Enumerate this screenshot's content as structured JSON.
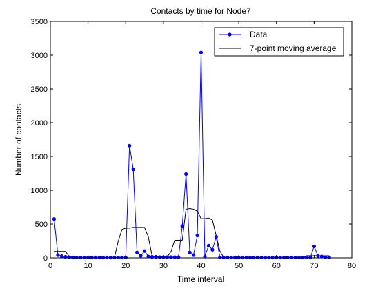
{
  "chart_data": {
    "type": "line",
    "title": "Contacts by time for Node7",
    "xlabel": "Time interval",
    "ylabel": "Number of contacts",
    "xlim": [
      0,
      80
    ],
    "ylim": [
      0,
      3500
    ],
    "xticks": [
      0,
      10,
      20,
      30,
      40,
      50,
      60,
      70,
      80
    ],
    "yticks": [
      0,
      500,
      1000,
      1500,
      2000,
      2500,
      3000,
      3500
    ],
    "grid": false,
    "legend_position": "top-right",
    "series": [
      {
        "name": "Data",
        "color": "#0000ff",
        "marker": "dot",
        "x": [
          1,
          2,
          3,
          4,
          5,
          6,
          7,
          8,
          9,
          10,
          11,
          12,
          13,
          14,
          15,
          16,
          17,
          18,
          19,
          20,
          21,
          22,
          23,
          24,
          25,
          26,
          27,
          28,
          29,
          30,
          31,
          32,
          33,
          34,
          35,
          36,
          37,
          38,
          39,
          40,
          41,
          42,
          43,
          44,
          45,
          46,
          47,
          48,
          49,
          50,
          51,
          52,
          53,
          54,
          55,
          56,
          57,
          58,
          59,
          60,
          61,
          62,
          63,
          64,
          65,
          66,
          67,
          68,
          69,
          70,
          71,
          72,
          73,
          74
        ],
        "y": [
          575,
          40,
          25,
          15,
          8,
          5,
          5,
          5,
          5,
          5,
          5,
          5,
          5,
          5,
          5,
          5,
          5,
          5,
          5,
          5,
          1660,
          1310,
          80,
          30,
          100,
          20,
          15,
          15,
          10,
          10,
          10,
          10,
          10,
          10,
          470,
          1240,
          80,
          40,
          330,
          3040,
          20,
          180,
          120,
          310,
          5,
          5,
          5,
          5,
          5,
          5,
          5,
          5,
          5,
          5,
          5,
          5,
          5,
          5,
          5,
          5,
          5,
          5,
          5,
          5,
          5,
          5,
          5,
          5,
          5,
          170,
          30,
          20,
          10,
          5
        ]
      },
      {
        "name": "7-point moving average",
        "color": "#000000",
        "marker": "none",
        "x": [
          1,
          2,
          3,
          4,
          5,
          6,
          7,
          8,
          9,
          10,
          11,
          12,
          13,
          14,
          15,
          16,
          17,
          18,
          19,
          20,
          21,
          22,
          23,
          24,
          25,
          26,
          27,
          28,
          29,
          30,
          31,
          32,
          33,
          34,
          35,
          36,
          37,
          38,
          39,
          40,
          41,
          42,
          43,
          44,
          45,
          46,
          47,
          48,
          49,
          50,
          51,
          52,
          53,
          54,
          55,
          56,
          57,
          58,
          59,
          60,
          61,
          62,
          63,
          64,
          65,
          66,
          67,
          68,
          69,
          70,
          71,
          72,
          73,
          74
        ],
        "y": [
          95,
          95,
          95,
          95,
          20,
          5,
          5,
          5,
          5,
          5,
          5,
          5,
          5,
          5,
          5,
          5,
          5,
          245,
          420,
          440,
          440,
          450,
          450,
          450,
          450,
          310,
          30,
          20,
          15,
          15,
          15,
          90,
          260,
          260,
          260,
          720,
          730,
          720,
          690,
          580,
          580,
          590,
          560,
          330,
          100,
          5,
          5,
          5,
          5,
          5,
          5,
          5,
          5,
          5,
          5,
          5,
          5,
          5,
          5,
          5,
          5,
          5,
          5,
          5,
          5,
          5,
          5,
          30,
          30,
          30,
          30,
          30,
          30,
          30
        ]
      }
    ]
  }
}
